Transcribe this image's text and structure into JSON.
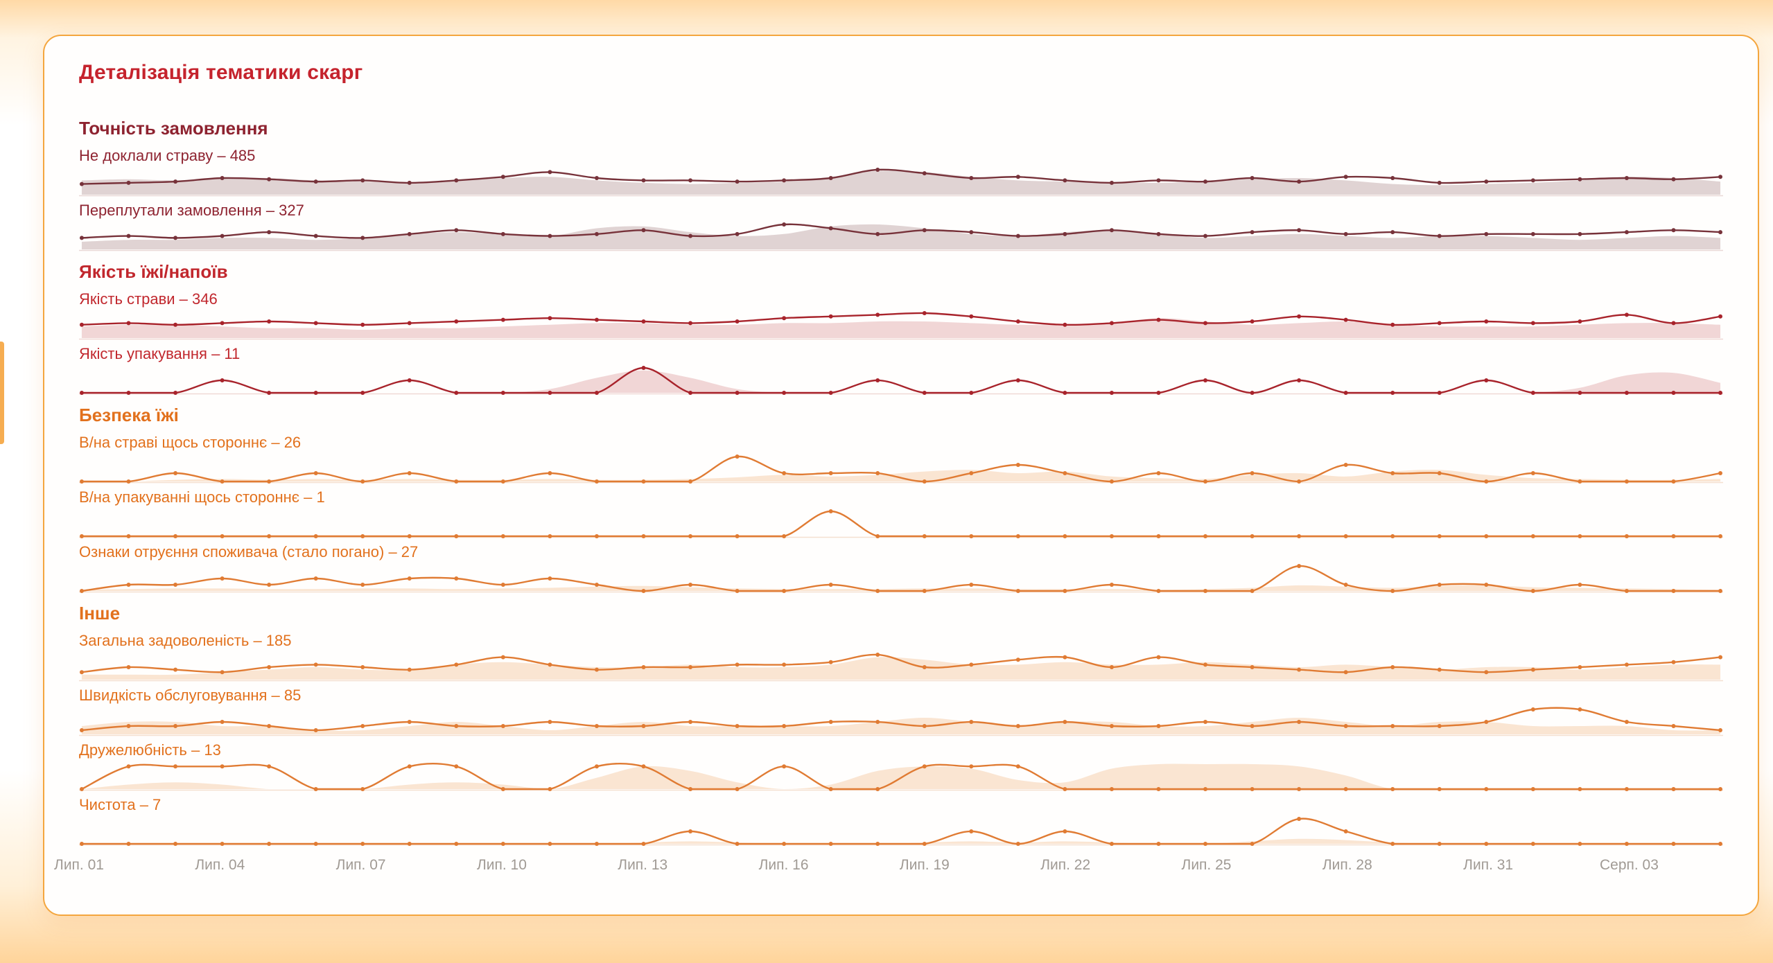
{
  "title": "Деталізація тематики скарг",
  "colors": {
    "title": "#c5232d",
    "axis_label": "#a09a94",
    "card_border": "#f4a63e"
  },
  "chart_data": {
    "type": "line",
    "subtype": "sparkline-rows-with-area",
    "n_points": 36,
    "grid": false,
    "legend": false,
    "x_ticks": [
      {
        "label": "Лип. 01",
        "day": 1
      },
      {
        "label": "Лип. 04",
        "day": 4
      },
      {
        "label": "Лип. 07",
        "day": 7
      },
      {
        "label": "Лип. 10",
        "day": 10
      },
      {
        "label": "Лип. 13",
        "day": 13
      },
      {
        "label": "Лип. 16",
        "day": 16
      },
      {
        "label": "Лип. 19",
        "day": 19
      },
      {
        "label": "Лип. 22",
        "day": 22
      },
      {
        "label": "Лип. 25",
        "day": 25
      },
      {
        "label": "Лип. 28",
        "day": 28
      },
      {
        "label": "Лип. 31",
        "day": 31
      },
      {
        "label": "Серп. 03",
        "day": 34
      }
    ],
    "groups": [
      {
        "id": "order-accuracy",
        "name": "Точність замовлення",
        "text_color": "#8e2330",
        "line_color": "#77323a",
        "fill_color": "#c6aeb1",
        "fill_opacity": 0.55,
        "baseline_color": "#e9d8d6",
        "rows": [
          {
            "label": "Не доклали страву – 485",
            "metric": "Не доклали страву",
            "total": 485,
            "values": [
              9,
              10,
              11,
              14,
              13,
              11,
              12,
              10,
              12,
              15,
              19,
              14,
              12,
              12,
              11,
              12,
              14,
              21,
              18,
              14,
              15,
              12,
              10,
              12,
              11,
              14,
              11,
              15,
              14,
              10,
              11,
              12,
              13,
              14,
              13,
              15
            ],
            "area": [
              12,
              13,
              12,
              14,
              14,
              12,
              11,
              10,
              12,
              14,
              15,
              12,
              10,
              9,
              10,
              11,
              15,
              20,
              19,
              15,
              12,
              11,
              10,
              10,
              11,
              13,
              14,
              12,
              9,
              8,
              9,
              10,
              12,
              15,
              14,
              11
            ]
          },
          {
            "label": "Переплутали замовлення – 327",
            "metric": "Переплутали замовлення",
            "total": 327,
            "values": [
              6,
              7,
              6,
              7,
              9,
              7,
              6,
              8,
              10,
              8,
              7,
              8,
              10,
              7,
              8,
              13,
              11,
              8,
              10,
              9,
              7,
              8,
              10,
              8,
              7,
              9,
              10,
              8,
              9,
              7,
              8,
              8,
              8,
              9,
              10,
              9
            ],
            "area": [
              4,
              5,
              5,
              6,
              6,
              5,
              6,
              8,
              9,
              8,
              7,
              11,
              12,
              9,
              7,
              8,
              12,
              13,
              11,
              8,
              7,
              9,
              10,
              8,
              6,
              7,
              8,
              7,
              6,
              7,
              7,
              6,
              5,
              6,
              7,
              6
            ]
          }
        ]
      },
      {
        "id": "food-quality",
        "name": "Якість їжі/напоїв",
        "text_color": "#c1272d",
        "line_color": "#a8232b",
        "fill_color": "#e3aeb0",
        "fill_opacity": 0.5,
        "baseline_color": "#f0d9d6",
        "rows": [
          {
            "label": "Якість страви – 346",
            "metric": "Якість страви",
            "total": 346,
            "values": [
              8,
              9,
              8,
              9,
              10,
              9,
              8,
              9,
              10,
              11,
              12,
              11,
              10,
              9,
              10,
              12,
              13,
              14,
              15,
              13,
              10,
              8,
              9,
              11,
              9,
              10,
              13,
              11,
              8,
              9,
              10,
              9,
              10,
              14,
              9,
              13
            ],
            "area": [
              7,
              8,
              8,
              7,
              6,
              6,
              5,
              6,
              6,
              7,
              8,
              9,
              9,
              8,
              8,
              9,
              9,
              10,
              10,
              9,
              8,
              8,
              9,
              12,
              10,
              8,
              9,
              10,
              8,
              7,
              7,
              7,
              8,
              9,
              9,
              8
            ]
          },
          {
            "label": "Якість упакування – 11",
            "metric": "Якість упакування",
            "total": 11,
            "values": [
              0,
              0,
              0,
              1,
              0,
              0,
              0,
              1,
              0,
              0,
              0,
              0,
              2,
              0,
              0,
              0,
              0,
              1,
              0,
              0,
              1,
              0,
              0,
              0,
              1,
              0,
              1,
              0,
              0,
              0,
              1,
              0,
              0,
              0,
              0,
              0
            ],
            "area": [
              0,
              0,
              0,
              0,
              0,
              0,
              0,
              0,
              0,
              0,
              0.3,
              1.2,
              1.8,
              1.2,
              0.3,
              0,
              0,
              0,
              0,
              0,
              0,
              0,
              0,
              0,
              0,
              0,
              0,
              0,
              0,
              0,
              0,
              0,
              0.4,
              1.4,
              1.6,
              0.8
            ]
          }
        ]
      },
      {
        "id": "food-safety",
        "name": "Безпека їжі",
        "text_color": "#e2711d",
        "line_color": "#e07b33",
        "fill_color": "#f6cfae",
        "fill_opacity": 0.55,
        "baseline_color": "#f5e0cf",
        "rows": [
          {
            "label": "В/на страві щось стороннє – 26",
            "metric": "В/на страві щось стороннє",
            "total": 26,
            "values": [
              0,
              0,
              1,
              0,
              0,
              1,
              0,
              1,
              0,
              0,
              1,
              0,
              0,
              0,
              3,
              1,
              1,
              1,
              0,
              1,
              2,
              1,
              0,
              1,
              0,
              1,
              0,
              2,
              1,
              1,
              0,
              1,
              0,
              0,
              0,
              1
            ],
            "area": [
              0,
              0,
              0.2,
              0.3,
              0.2,
              0.3,
              0.2,
              0.3,
              0.2,
              0.2,
              0.3,
              0.2,
              0.2,
              0.3,
              0.5,
              0.8,
              0.6,
              0.8,
              1.2,
              1.4,
              1.0,
              1.2,
              0.6,
              0.4,
              0.3,
              0.8,
              1.0,
              0.6,
              1.2,
              1.4,
              0.8,
              0.4,
              0.3,
              0.2,
              0.2,
              0.3
            ]
          },
          {
            "label": "В/на упакуванні щось стороннє – 1",
            "metric": "В/на упакуванні щось стороннє",
            "total": 1,
            "values": [
              0,
              0,
              0,
              0,
              0,
              0,
              0,
              0,
              0,
              0,
              0,
              0,
              0,
              0,
              0,
              0,
              1,
              0,
              0,
              0,
              0,
              0,
              0,
              0,
              0,
              0,
              0,
              0,
              0,
              0,
              0,
              0,
              0,
              0,
              0,
              0
            ],
            "area": [
              0,
              0,
              0,
              0,
              0,
              0,
              0,
              0,
              0,
              0,
              0,
              0,
              0,
              0,
              0,
              0,
              0,
              0,
              0,
              0,
              0,
              0,
              0,
              0,
              0,
              0,
              0,
              0,
              0,
              0,
              0,
              0,
              0,
              0,
              0,
              0
            ]
          },
          {
            "label": "Ознаки отруєння споживача (стало погано) – 27",
            "metric": "Ознаки отруєння споживача (стало погано)",
            "total": 27,
            "values": [
              0,
              1,
              1,
              2,
              1,
              2,
              1,
              2,
              2,
              1,
              2,
              1,
              0,
              1,
              0,
              0,
              1,
              0,
              0,
              1,
              0,
              0,
              1,
              0,
              0,
              0,
              4,
              1,
              0,
              1,
              1,
              0,
              1,
              0,
              0,
              0
            ],
            "area": [
              0.2,
              0.3,
              0.4,
              0.4,
              0.3,
              0.3,
              0.4,
              0.4,
              0.3,
              0.4,
              0.5,
              0.7,
              0.8,
              0.6,
              0.4,
              0.3,
              0.3,
              0.3,
              0.4,
              0.4,
              0.3,
              0.3,
              0.3,
              0.2,
              0.3,
              0.5,
              0.9,
              0.7,
              0.5,
              0.8,
              0.9,
              0.6,
              0.5,
              0.4,
              0.3,
              0.2
            ]
          }
        ]
      },
      {
        "id": "other",
        "name": "Інше",
        "text_color": "#e2711d",
        "line_color": "#e07b33",
        "fill_color": "#f6cfae",
        "fill_opacity": 0.55,
        "baseline_color": "#f5e0cf",
        "rows": [
          {
            "label": "Загальна задоволеність – 185",
            "metric": "Загальна задоволеність",
            "total": 185,
            "values": [
              3,
              5,
              4,
              3,
              5,
              6,
              5,
              4,
              6,
              9,
              6,
              4,
              5,
              5,
              6,
              6,
              7,
              10,
              5,
              6,
              8,
              9,
              5,
              9,
              6,
              5,
              4,
              3,
              5,
              4,
              3,
              4,
              5,
              6,
              7,
              9
            ],
            "area": [
              2,
              2,
              2,
              3,
              4,
              5,
              4,
              4,
              6,
              7,
              6,
              5,
              5,
              6,
              5,
              5,
              6,
              9,
              8,
              6,
              6,
              7,
              6,
              6,
              7,
              6,
              5,
              6,
              5,
              4,
              5,
              5,
              4,
              5,
              6,
              6
            ]
          },
          {
            "label": "Швидкість обслуговування – 85",
            "metric": "Швидкість обслуговування",
            "total": 85,
            "values": [
              1,
              2,
              2,
              3,
              2,
              1,
              2,
              3,
              2,
              2,
              3,
              2,
              2,
              3,
              2,
              2,
              3,
              3,
              2,
              3,
              2,
              3,
              2,
              2,
              3,
              2,
              3,
              2,
              2,
              2,
              3,
              6,
              6,
              3,
              2,
              1
            ],
            "area": [
              2,
              3,
              3,
              2,
              2,
              1,
              1,
              2,
              3,
              2,
              1,
              2,
              3,
              2,
              2,
              2,
              2,
              3,
              4,
              3,
              2,
              3,
              3,
              2,
              2,
              3,
              4,
              3,
              2,
              3,
              3,
              2,
              2,
              2,
              1,
              1
            ]
          },
          {
            "label": "Дружелюбність – 13",
            "metric": "Дружелюбність",
            "total": 13,
            "values": [
              0,
              1,
              1,
              1,
              1,
              0,
              0,
              1,
              1,
              0,
              0,
              1,
              1,
              0,
              0,
              1,
              0,
              0,
              1,
              1,
              1,
              0,
              0,
              0,
              0,
              0,
              0,
              0,
              0,
              0,
              0,
              0,
              0,
              0,
              0,
              0
            ],
            "area": [
              0,
              0.2,
              0.3,
              0.2,
              0,
              0,
              0,
              0.2,
              0.3,
              0.2,
              0,
              0.5,
              1.0,
              0.8,
              0.3,
              0,
              0.2,
              0.8,
              1.0,
              0.9,
              0.4,
              0.3,
              0.9,
              1.1,
              1.1,
              1.1,
              1.0,
              0.6,
              0,
              0,
              0,
              0,
              0,
              0,
              0,
              0
            ]
          },
          {
            "label": "Чистота – 7",
            "metric": "Чистота",
            "total": 7,
            "values": [
              0,
              0,
              0,
              0,
              0,
              0,
              0,
              0,
              0,
              0,
              0,
              0,
              0,
              1,
              0,
              0,
              0,
              0,
              0,
              1,
              0,
              1,
              0,
              0,
              0,
              0,
              2,
              1,
              0,
              0,
              0,
              0,
              0,
              0,
              0,
              0
            ],
            "area": [
              0,
              0,
              0,
              0,
              0,
              0,
              0,
              0,
              0,
              0,
              0,
              0,
              0.1,
              0.2,
              0.1,
              0,
              0,
              0,
              0.1,
              0.2,
              0.1,
              0.2,
              0.1,
              0,
              0,
              0.2,
              0.4,
              0.3,
              0.1,
              0,
              0,
              0,
              0,
              0,
              0,
              0
            ]
          }
        ]
      }
    ]
  }
}
